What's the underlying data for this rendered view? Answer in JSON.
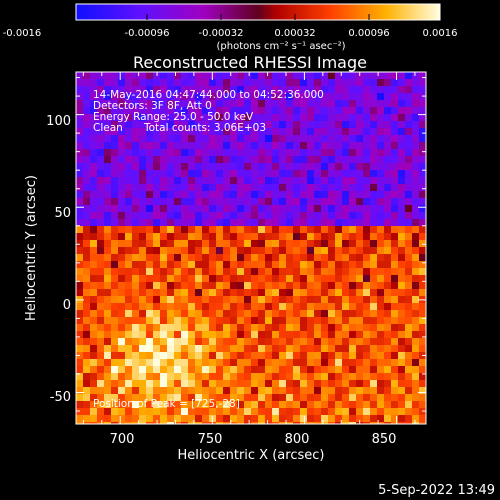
{
  "colorbar": {
    "ticks": [
      "-0.0016",
      "-0.00096",
      "-0.00032",
      "0.00032",
      "0.00096",
      "0.0016"
    ],
    "unit_label": "(photons cm⁻² s⁻¹ asec⁻²)"
  },
  "chart_data": {
    "type": "heatmap",
    "title": "Reconstructed RHESSI Image",
    "xlabel": "Heliocentric X (arcsec)",
    "ylabel": "Heliocentric Y (arcsec)",
    "xlim": [
      676,
      866
    ],
    "ylim": [
      -67,
      123
    ],
    "xticks": [
      "700",
      "750",
      "800",
      "850"
    ],
    "yticks": [
      "100",
      "50",
      "0",
      "-50"
    ],
    "xtick_values": [
      700,
      750,
      800,
      850
    ],
    "ytick_values": [
      100,
      50,
      0,
      -50
    ],
    "color_range": [
      -0.0016,
      0.0016
    ],
    "colormap": "rainbow (blue-purple-red-orange-yellow-white)",
    "annotations": [
      "14-May-2016 04:47:44.000 to 04:52:36.000",
      "Detectors: 3F 8F, Att 0",
      "Energy Range: 25.0 - 50.0 keV",
      "Clean",
      "Total counts: 3.06E+03"
    ],
    "peak_label": "Position of Peak = [725,-28]"
  },
  "footer": {
    "date": "5-Sep-2022 13:49"
  },
  "colors": {
    "background": "#000000",
    "text": "#ffffff"
  }
}
